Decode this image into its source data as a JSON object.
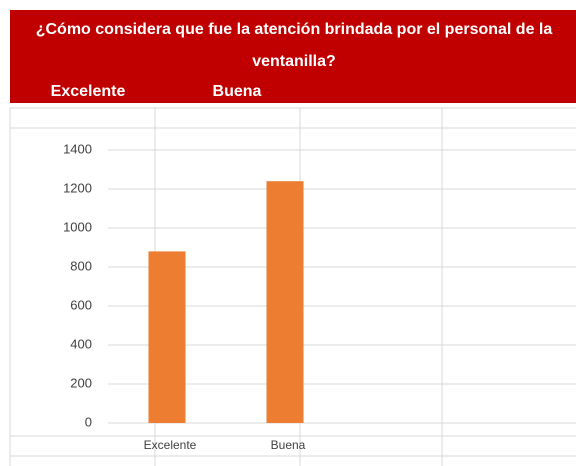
{
  "chart_data": {
    "type": "bar",
    "title": "¿Cómo considera que fue la atención brindada por el personal de la ventanilla?",
    "categories": [
      "Excelente",
      "Buena"
    ],
    "values": [
      880,
      1240
    ],
    "color": "#ed7d31",
    "ylim": [
      0,
      1400
    ],
    "yticks": [
      0,
      200,
      400,
      600,
      800,
      1000,
      1200,
      1400
    ],
    "grid": true
  }
}
